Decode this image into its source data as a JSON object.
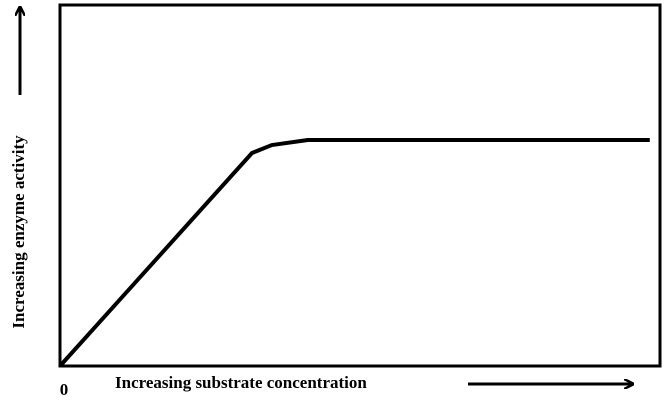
{
  "chart_data": {
    "type": "line",
    "x_label": "Increasing substrate concentration",
    "y_label": "Increasing enzyme activity",
    "x": [
      0,
      32,
      35.3,
      41.3,
      98.3
    ],
    "series": [
      {
        "color": "#000000",
        "values": [
          0,
          59,
          61.2,
          62.6,
          62.6
        ]
      }
    ],
    "xlim": [
      0,
      100
    ],
    "ylim": [
      0,
      100
    ],
    "xticks": [
      0
    ],
    "grid": false
  }
}
